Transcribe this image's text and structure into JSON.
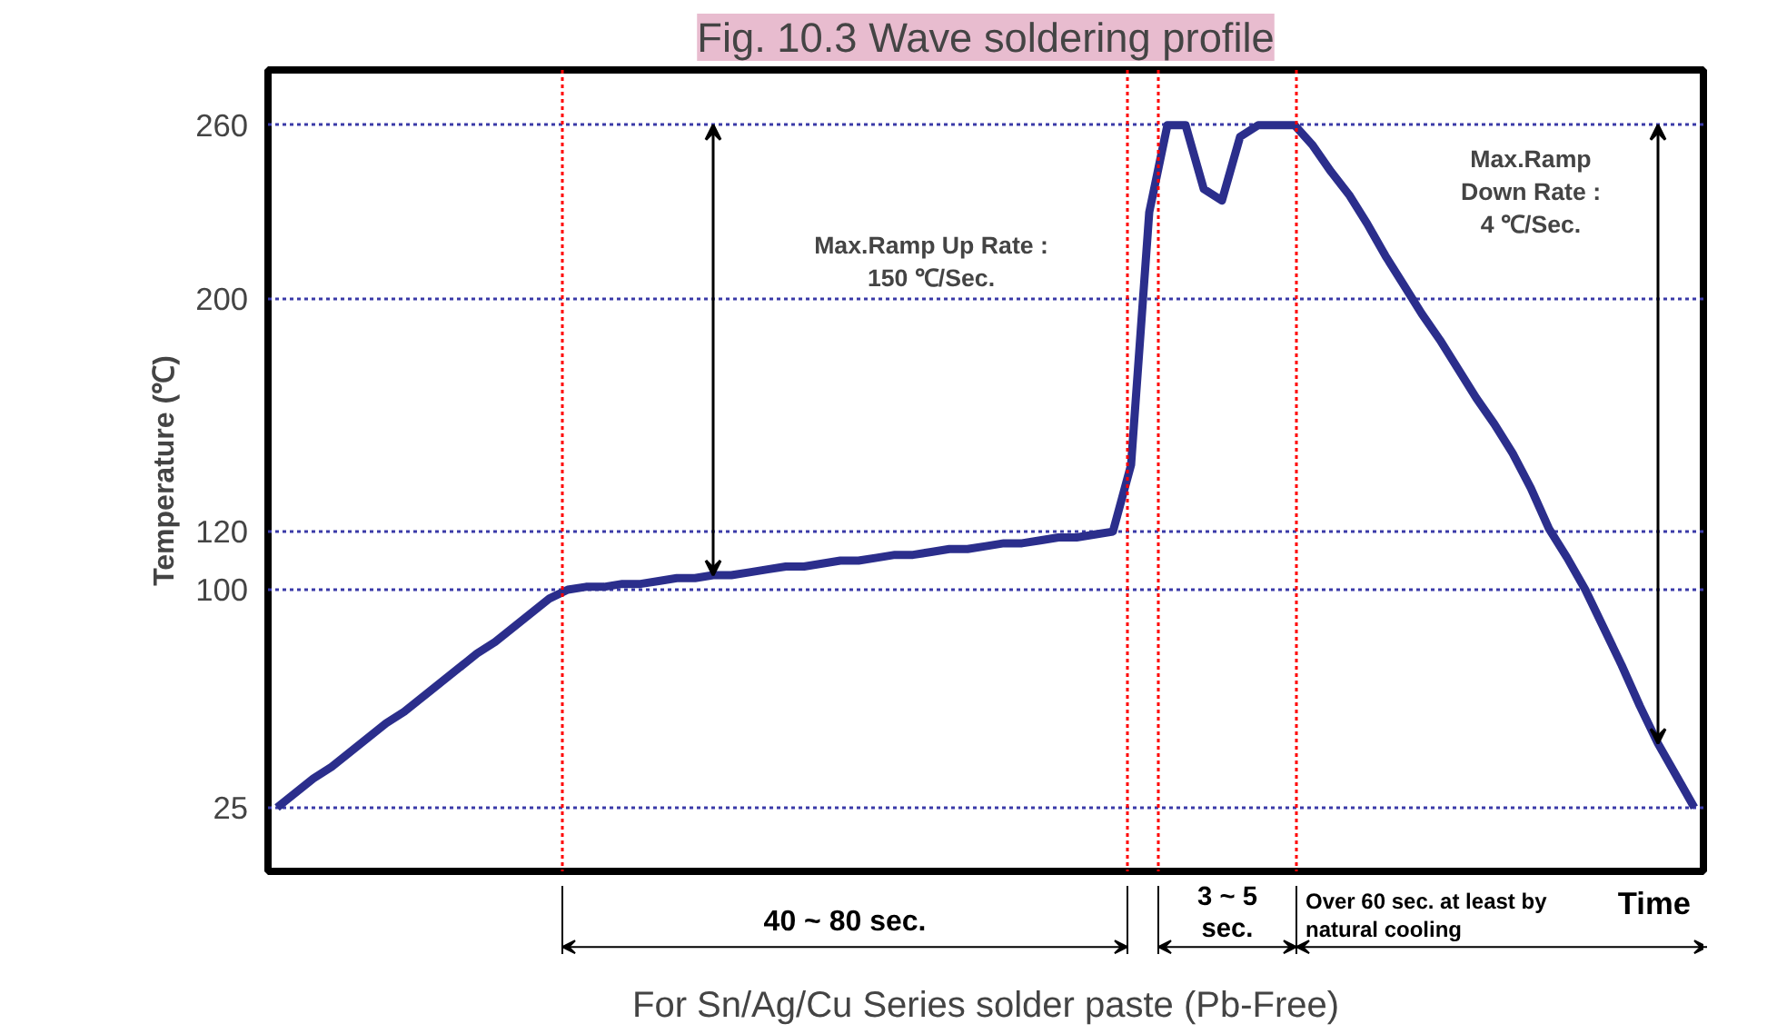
{
  "chart_data": {
    "type": "line",
    "title": "Fig. 10.3 Wave soldering profile",
    "xlabel": "Time",
    "ylabel": "Temperature (℃)",
    "categories": [
      null,
      null,
      null,
      null,
      null,
      null,
      null,
      null,
      null,
      null,
      null,
      null,
      null,
      null,
      null,
      null,
      null,
      null,
      null,
      null,
      null,
      null,
      null,
      null,
      null,
      null,
      null,
      null,
      null,
      null,
      null,
      null,
      null,
      null,
      null,
      null,
      null,
      null,
      null,
      null,
      null,
      null,
      null,
      null,
      null,
      null,
      null,
      null,
      null,
      null,
      null,
      null,
      null,
      null,
      null,
      null,
      null,
      null,
      null,
      null,
      null,
      null,
      null,
      null,
      null,
      null,
      null,
      null,
      null,
      null,
      null,
      null,
      null,
      null,
      null,
      null,
      null,
      null,
      null
    ],
    "series": [
      {
        "color": "#2b2e8c",
        "values": [
          25,
          30,
          35,
          39,
          44,
          49,
          54,
          58,
          63,
          68,
          73,
          78,
          82,
          87,
          92,
          97,
          100,
          101,
          101,
          102,
          102,
          103,
          104,
          104,
          105,
          105,
          106,
          107,
          108,
          108,
          109,
          110,
          110,
          111,
          112,
          112,
          113,
          114,
          114,
          115,
          116,
          116,
          117,
          118,
          118,
          119,
          120,
          143,
          230,
          260,
          260,
          238,
          234,
          256,
          260,
          260,
          260,
          253,
          244,
          236,
          226,
          215,
          205,
          195,
          186,
          176,
          166,
          157,
          147,
          135,
          121,
          111,
          100,
          87,
          74,
          60,
          47,
          36,
          25
        ]
      }
    ],
    "ylim": [
      3,
      279
    ],
    "yticks": [
      25,
      100,
      120,
      200,
      260
    ],
    "grid": "y",
    "tick_labels": "y",
    "marker": "none",
    "line_style": "solid",
    "annotations": [
      "Max.Ramp Up Rate :\n150 ℃/Sec.",
      "Max.Ramp\nDown Rate :\n4 ℃/Sec.",
      "40 ~ 80 sec.",
      "3 ~ 5\nsec.",
      "Over 60 sec. at least by\nnatural cooling",
      "For Sn/Ag/Cu Series solder paste (Pb-Free)"
    ]
  }
}
